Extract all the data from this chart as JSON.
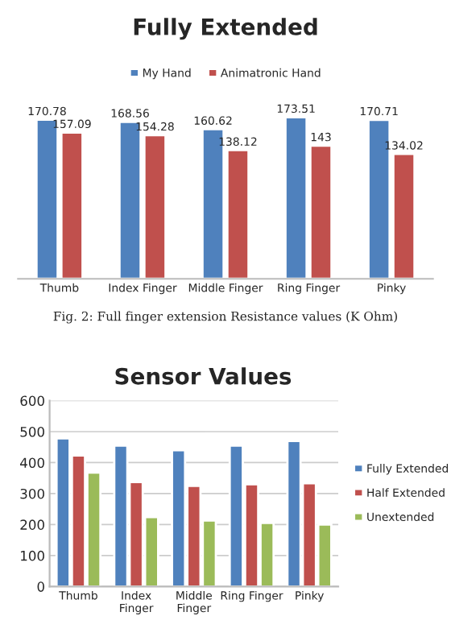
{
  "chart_data": [
    {
      "type": "bar",
      "title": "Fully Extended",
      "categories": [
        "Thumb",
        "Index Finger",
        "Middle Finger",
        "Ring Finger",
        "Pinky"
      ],
      "series": [
        {
          "name": "My Hand",
          "color": "#4f81bd",
          "values": [
            170.78,
            168.56,
            160.62,
            173.51,
            170.71
          ]
        },
        {
          "name": "Animatronic Hand",
          "color": "#c0504d",
          "values": [
            157.09,
            154.28,
            138.12,
            143,
            134.02
          ]
        }
      ],
      "data_labels": true,
      "legend": "top",
      "grid": false,
      "tick_labels": "x",
      "annotations": [
        "Fig. 2: Full finger extension Resistance values (K Ohm)"
      ]
    },
    {
      "type": "bar",
      "title": "Sensor Values",
      "categories": [
        "Thumb",
        "Index\nFinger",
        "Middle\nFinger",
        "Ring Finger",
        "Pinky"
      ],
      "series": [
        {
          "name": "Fully Extended",
          "color": "#4f81bd",
          "values": [
            478,
            455,
            440,
            455,
            470
          ]
        },
        {
          "name": "Half Extended",
          "color": "#c0504d",
          "values": [
            423,
            337,
            325,
            330,
            333
          ]
        },
        {
          "name": "Unextended",
          "color": "#9bbb59",
          "values": [
            368,
            224,
            213,
            205,
            200
          ]
        }
      ],
      "ylim": [
        0,
        600
      ],
      "yticks": [
        0,
        100,
        200,
        300,
        400,
        500,
        600
      ],
      "grid": "y",
      "legend": "right"
    }
  ]
}
